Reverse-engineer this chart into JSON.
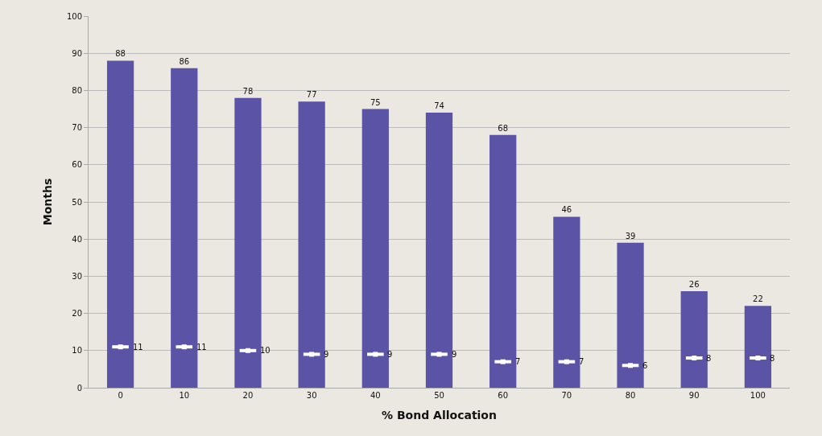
{
  "chart_data": {
    "type": "bar",
    "xlabel": "% Bond Allocation",
    "ylabel": "Months",
    "categories": [
      "0",
      "10",
      "20",
      "30",
      "40",
      "50",
      "60",
      "70",
      "80",
      "90",
      "100"
    ],
    "series": [
      {
        "color": "#5b54a6",
        "values": [
          88,
          86,
          78,
          77,
          75,
          74,
          68,
          46,
          39,
          26,
          22
        ]
      },
      {
        "type": "scatter",
        "color": "#ffffff",
        "values": [
          11,
          11,
          10,
          9,
          9,
          9,
          7,
          7,
          6,
          8,
          8
        ]
      }
    ],
    "ylim": [
      0,
      100
    ],
    "yticks": [
      0,
      10,
      20,
      30,
      40,
      50,
      60,
      70,
      80,
      90,
      100
    ],
    "grid": "y",
    "data_labels": true
  }
}
